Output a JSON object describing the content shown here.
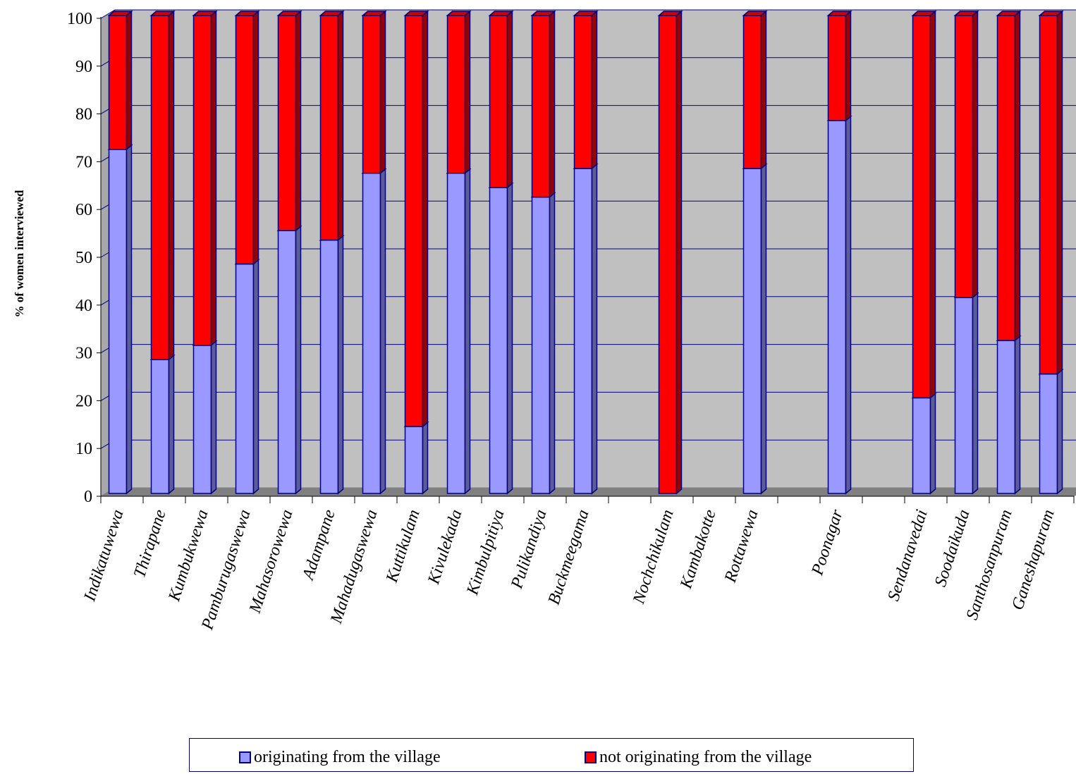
{
  "chart_data": {
    "type": "bar",
    "stacked": true,
    "three_d": true,
    "ylabel": "% of women interviewed",
    "xlabel": "",
    "ylim": [
      0,
      100
    ],
    "yticks": [
      0,
      10,
      20,
      30,
      40,
      50,
      60,
      70,
      80,
      90,
      100
    ],
    "grid": true,
    "legend_position": "bottom",
    "categories": [
      "Indikatuwewa",
      "Thirapane",
      "Kumbukwewa",
      "Pamburugaswewa",
      "Mahasorowewa",
      "Adampane",
      "Mahadugaswewa",
      "Kuttikulam",
      "Kivulekada",
      "Kimbulpitiya",
      "Pulikandiya",
      "Buckmeegama",
      "",
      "Nochchikulam",
      "Kambakotte",
      "Rottawewa",
      "",
      "Poonagar",
      "",
      "Sendanavedai",
      "Soodaikuda",
      "Santhosanpuram",
      "Ganeshapuram"
    ],
    "series": [
      {
        "name": "originating from the village",
        "color": "#9999ff",
        "values": [
          72,
          28,
          31,
          48,
          55,
          53,
          67,
          14,
          67,
          64,
          62,
          68,
          null,
          0,
          null,
          68,
          null,
          78,
          null,
          20,
          41,
          32,
          25
        ]
      },
      {
        "name": "not originating from the village",
        "color": "#ff0000",
        "values": [
          28,
          72,
          69,
          52,
          45,
          47,
          33,
          86,
          33,
          36,
          38,
          32,
          null,
          100,
          null,
          32,
          null,
          22,
          null,
          80,
          59,
          68,
          75
        ]
      }
    ]
  },
  "legend": {
    "item1": {
      "label": "originating from the village",
      "color": "#9999ff"
    },
    "item2": {
      "label": "not originating from the village",
      "color": "#ff0000"
    }
  }
}
